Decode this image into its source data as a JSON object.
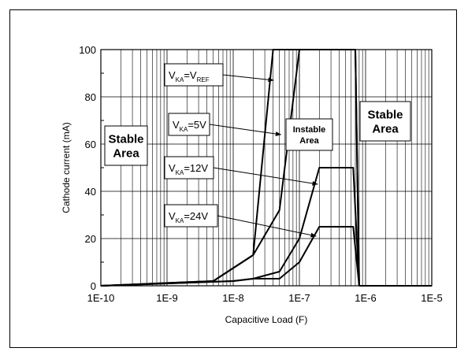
{
  "chart_data": {
    "type": "line",
    "xlabel": "Capacitive Load (F)",
    "ylabel": "Cathode current (mA)",
    "x_scale": "log",
    "xlim": [
      1e-10,
      1e-05
    ],
    "ylim": [
      0,
      100
    ],
    "x_tick_labels": [
      "1E-10",
      "1E-9",
      "1E-8",
      "1E-7",
      "1E-6",
      "1E-5"
    ],
    "y_ticks": [
      0,
      20,
      40,
      60,
      80,
      100
    ],
    "grid": true,
    "series": [
      {
        "name": "VKA=VREF",
        "label": {
          "main": "V",
          "sub1": "KA",
          "mid": "=V",
          "sub2": "REF"
        },
        "x": [
          1e-10,
          5e-09,
          2e-08,
          4e-08,
          4.5e-08,
          7e-07,
          8e-07
        ],
        "y": [
          0,
          2,
          13,
          100,
          100,
          100,
          0
        ]
      },
      {
        "name": "VKA=5V",
        "label": {
          "main": "V",
          "sub1": "KA",
          "mid": "=5V",
          "sub2": ""
        },
        "x": [
          1e-10,
          5e-09,
          2e-08,
          5e-08,
          1e-07,
          7e-07,
          8e-07
        ],
        "y": [
          0,
          2,
          13,
          32,
          100,
          100,
          0
        ]
      },
      {
        "name": "VKA=12V",
        "label": {
          "main": "V",
          "sub1": "KA",
          "mid": "=12V",
          "sub2": ""
        },
        "x": [
          1e-10,
          1e-08,
          2e-08,
          5e-08,
          1e-07,
          2e-07,
          6.5e-07,
          8e-07
        ],
        "y": [
          0,
          2,
          3,
          6,
          20,
          50,
          50,
          0
        ]
      },
      {
        "name": "VKA=24V",
        "label": {
          "main": "V",
          "sub1": "KA",
          "mid": "=24V",
          "sub2": ""
        },
        "x": [
          1e-10,
          1e-08,
          2e-08,
          5e-08,
          1e-07,
          2e-07,
          6.5e-07,
          8e-07
        ],
        "y": [
          0,
          2,
          3,
          3,
          10,
          25,
          25,
          0
        ]
      },
      {
        "name": "baseline",
        "label": null,
        "x": [
          8e-07,
          1e-05
        ],
        "y": [
          0,
          0
        ]
      }
    ],
    "annotations": [
      {
        "id": "stable-area-left",
        "lines": [
          "Stable",
          "Area"
        ]
      },
      {
        "id": "instable-area",
        "lines": [
          "Instable",
          "Area"
        ]
      },
      {
        "id": "stable-area-right",
        "lines": [
          "Stable",
          "Area"
        ]
      }
    ]
  }
}
